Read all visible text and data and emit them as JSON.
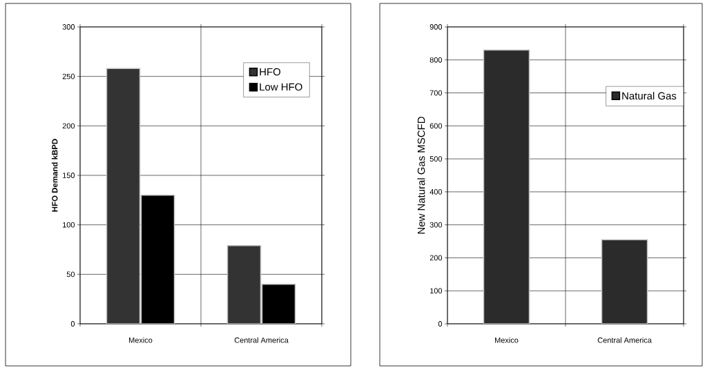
{
  "chart_data": [
    {
      "type": "bar",
      "ylabel": "HFO Demand  kBPD",
      "categories": [
        "Mexico",
        "Central America"
      ],
      "series": [
        {
          "name": "HFO",
          "color": "#333333",
          "values": [
            258,
            79
          ]
        },
        {
          "name": "Low HFO",
          "color": "#000000",
          "values": [
            130,
            40
          ]
        }
      ],
      "ylim": [
        0,
        300
      ],
      "yticks": [
        0,
        50,
        100,
        150,
        200,
        250,
        300
      ],
      "grid": true,
      "legend": "top right"
    },
    {
      "type": "bar",
      "ylabel": "New Natural Gas  MSCFD",
      "categories": [
        "Mexico",
        "Central America"
      ],
      "series": [
        {
          "name": "Natural Gas",
          "color": "#2b2b2b",
          "values": [
            830,
            255
          ]
        }
      ],
      "ylim": [
        0,
        900
      ],
      "yticks": [
        0,
        100,
        200,
        300,
        400,
        500,
        600,
        700,
        800,
        900
      ],
      "grid": true,
      "legend": "top right"
    }
  ]
}
